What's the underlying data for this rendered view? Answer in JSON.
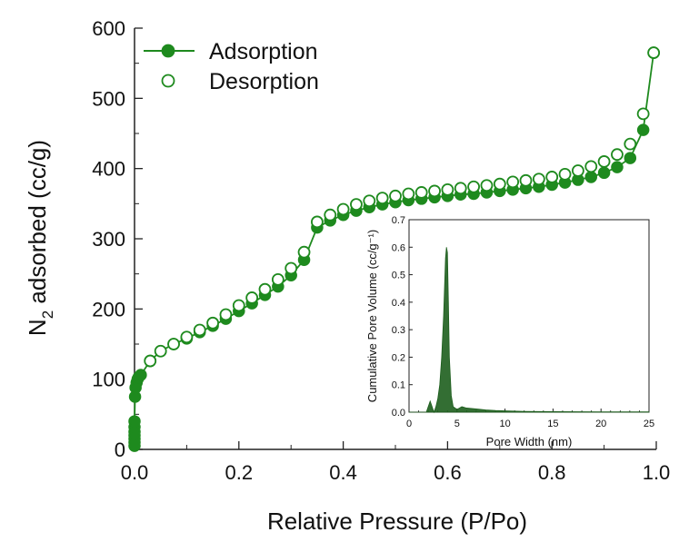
{
  "chart_data": [
    {
      "type": "scatter",
      "xlabel": "Relative Pressure (P/Po)",
      "ylabel": "N₂ adsorbed (cc/g)",
      "xlim": [
        0,
        1.0
      ],
      "ylim": [
        0,
        600
      ],
      "xticks": [
        "0.0",
        "0.2",
        "0.4",
        "0.6",
        "0.8",
        "1.0"
      ],
      "yticks": [
        "0",
        "100",
        "200",
        "300",
        "400",
        "500",
        "600"
      ],
      "grid": false,
      "legend": "top-left",
      "color": "#1e8a1e",
      "series": [
        {
          "name": "Adsorption",
          "marker": "filled-circle-line",
          "x": [
            0.0,
            0.0,
            0.0,
            0.0,
            0.0,
            0.0,
            0.0,
            0.001,
            0.002,
            0.004,
            0.006,
            0.008,
            0.012,
            0.03,
            0.05,
            0.075,
            0.1,
            0.125,
            0.15,
            0.175,
            0.2,
            0.225,
            0.25,
            0.275,
            0.3,
            0.325,
            0.35,
            0.375,
            0.4,
            0.425,
            0.45,
            0.475,
            0.5,
            0.525,
            0.55,
            0.575,
            0.6,
            0.625,
            0.65,
            0.675,
            0.7,
            0.725,
            0.75,
            0.775,
            0.8,
            0.825,
            0.85,
            0.875,
            0.9,
            0.925,
            0.95,
            0.975,
            0.995
          ],
          "y": [
            5,
            10,
            15,
            20,
            25,
            32,
            40,
            75,
            88,
            95,
            100,
            103,
            106,
            126,
            140,
            150,
            158,
            167,
            176,
            186,
            197,
            208,
            220,
            232,
            248,
            270,
            316,
            326,
            334,
            340,
            345,
            349,
            352,
            355,
            357,
            359,
            361,
            363,
            364,
            366,
            368,
            370,
            372,
            374,
            377,
            380,
            384,
            388,
            394,
            402,
            415,
            455,
            565
          ]
        },
        {
          "name": "Desorption",
          "marker": "open-circle",
          "x": [
            0.995,
            0.975,
            0.95,
            0.925,
            0.9,
            0.875,
            0.85,
            0.825,
            0.8,
            0.775,
            0.75,
            0.725,
            0.7,
            0.675,
            0.65,
            0.625,
            0.6,
            0.575,
            0.55,
            0.525,
            0.5,
            0.475,
            0.45,
            0.425,
            0.4,
            0.375,
            0.35,
            0.325,
            0.3,
            0.275,
            0.25,
            0.225,
            0.2,
            0.175,
            0.15,
            0.125,
            0.1,
            0.075,
            0.05,
            0.03
          ],
          "y": [
            565,
            478,
            435,
            420,
            410,
            403,
            397,
            392,
            388,
            385,
            383,
            381,
            378,
            376,
            374,
            372,
            370,
            368,
            366,
            364,
            361,
            358,
            354,
            349,
            342,
            334,
            324,
            281,
            258,
            242,
            228,
            216,
            205,
            192,
            180,
            170,
            160,
            150,
            140,
            126
          ]
        }
      ]
    },
    {
      "type": "area",
      "xlabel": "Pore Width (nm)",
      "ylabel": "Cumulative Pore Volume (cc/g⁻¹)",
      "xlim": [
        0,
        25
      ],
      "ylim": [
        0,
        0.7
      ],
      "xticks": [
        "0",
        "5",
        "10",
        "15",
        "20",
        "25"
      ],
      "yticks": [
        "0.0",
        "0.1",
        "0.2",
        "0.3",
        "0.4",
        "0.5",
        "0.6",
        "0.7"
      ],
      "grid": false,
      "color": "#1d5e1d",
      "x": [
        0,
        1.8,
        2.0,
        2.2,
        2.4,
        2.6,
        2.8,
        3.0,
        3.2,
        3.4,
        3.6,
        3.8,
        3.9,
        4.0,
        4.1,
        4.2,
        4.4,
        4.6,
        5.0,
        5.5,
        6.0,
        7.0,
        8.0,
        9.0,
        10.0,
        12.0,
        15.0,
        20.0,
        25.0
      ],
      "y": [
        0,
        0,
        0.02,
        0.04,
        0.02,
        0.0,
        0.02,
        0.05,
        0.1,
        0.2,
        0.35,
        0.56,
        0.6,
        0.58,
        0.4,
        0.2,
        0.06,
        0.02,
        0.01,
        0.02,
        0.015,
        0.012,
        0.008,
        0.006,
        0.005,
        0.003,
        0.002,
        0.001,
        0.001
      ]
    }
  ]
}
